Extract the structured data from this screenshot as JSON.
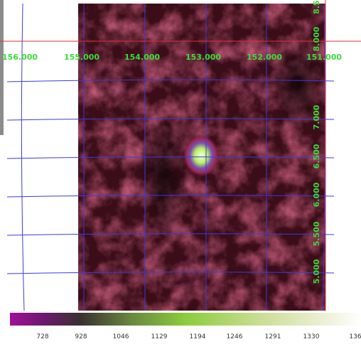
{
  "grid": {
    "x_labels": [
      "156.000",
      "155.000",
      "154.000",
      "153.000",
      "152.000",
      "151.000"
    ],
    "y_labels": [
      "8.5",
      "8.000",
      "7.000",
      "6.500",
      "6.000",
      "5.500",
      "5.000"
    ]
  },
  "colorbar": {
    "labels": [
      "728",
      "928",
      "1046",
      "1129",
      "1194",
      "1246",
      "1291",
      "1330",
      "136"
    ]
  }
}
